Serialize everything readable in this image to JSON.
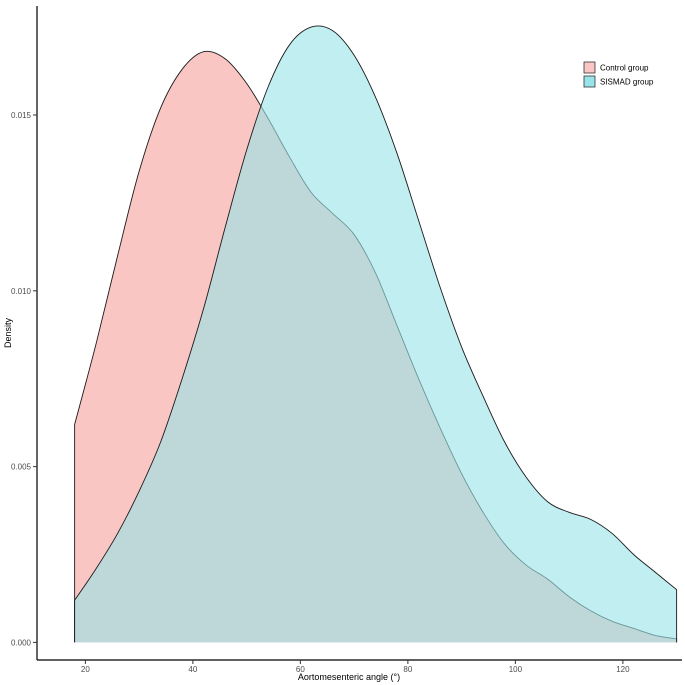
{
  "chart_data": {
    "type": "area",
    "title": "",
    "xlabel": "Aortomesenteric angle (°)",
    "ylabel": "Density",
    "xlim": [
      11,
      131
    ],
    "ylim": [
      -0.0005,
      0.0181
    ],
    "x_ticks": [
      20,
      40,
      60,
      80,
      100,
      120
    ],
    "y_ticks": [
      0.0,
      0.005,
      0.01,
      0.015
    ],
    "y_tick_labels": [
      "0.000",
      "0.005",
      "0.010",
      "0.015"
    ],
    "grid": false,
    "legend_position": "top-right",
    "series": [
      {
        "name": "Control group",
        "color": "#F8766D",
        "fill": "#F9C6C3",
        "points": [
          [
            18,
            0.0062
          ],
          [
            22,
            0.0085
          ],
          [
            26,
            0.011
          ],
          [
            30,
            0.0134
          ],
          [
            34,
            0.0152
          ],
          [
            38,
            0.0163
          ],
          [
            42,
            0.0168
          ],
          [
            46,
            0.0166
          ],
          [
            50,
            0.0159
          ],
          [
            54,
            0.0149
          ],
          [
            58,
            0.0138
          ],
          [
            62,
            0.0128
          ],
          [
            66,
            0.0122
          ],
          [
            70,
            0.0116
          ],
          [
            74,
            0.0105
          ],
          [
            78,
            0.009
          ],
          [
            82,
            0.0075
          ],
          [
            86,
            0.0061
          ],
          [
            90,
            0.0048
          ],
          [
            94,
            0.0037
          ],
          [
            98,
            0.0028
          ],
          [
            102,
            0.0022
          ],
          [
            106,
            0.0018
          ],
          [
            110,
            0.0013
          ],
          [
            114,
            0.0009
          ],
          [
            118,
            0.0006
          ],
          [
            122,
            0.0004
          ],
          [
            126,
            0.0002
          ],
          [
            130,
            0.0001
          ]
        ]
      },
      {
        "name": "SISMAD group",
        "color": "#00BFC4",
        "fill": "#99E4E8",
        "points": [
          [
            18,
            0.0012
          ],
          [
            22,
            0.0021
          ],
          [
            26,
            0.0031
          ],
          [
            30,
            0.0043
          ],
          [
            34,
            0.0057
          ],
          [
            38,
            0.0075
          ],
          [
            42,
            0.0095
          ],
          [
            46,
            0.0118
          ],
          [
            50,
            0.014
          ],
          [
            54,
            0.0158
          ],
          [
            58,
            0.017
          ],
          [
            62,
            0.0175
          ],
          [
            66,
            0.0174
          ],
          [
            70,
            0.0167
          ],
          [
            74,
            0.0155
          ],
          [
            78,
            0.0139
          ],
          [
            82,
            0.012
          ],
          [
            86,
            0.0101
          ],
          [
            90,
            0.0084
          ],
          [
            94,
            0.007
          ],
          [
            98,
            0.0057
          ],
          [
            102,
            0.0047
          ],
          [
            106,
            0.004
          ],
          [
            110,
            0.0037
          ],
          [
            114,
            0.0035
          ],
          [
            118,
            0.0031
          ],
          [
            122,
            0.0025
          ],
          [
            126,
            0.002
          ],
          [
            130,
            0.0015
          ]
        ]
      }
    ]
  }
}
